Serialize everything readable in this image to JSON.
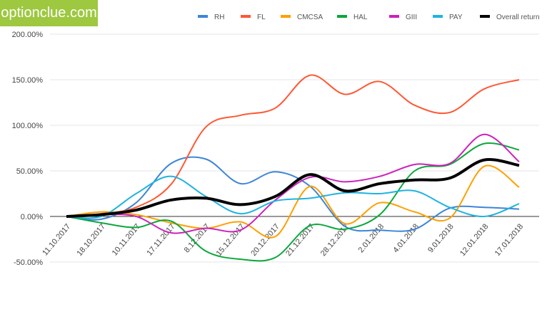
{
  "logo": "optionclue.com",
  "chart_data": {
    "type": "line",
    "title": "",
    "xlabel": "",
    "ylabel": "",
    "ylim": [
      -50,
      200
    ],
    "yticks": [
      -50,
      0,
      50,
      100,
      150,
      200
    ],
    "ytick_labels": [
      "-50.00%",
      "0.00%",
      "50.00%",
      "100.00%",
      "150.00%",
      "200.00%"
    ],
    "legend_position": "top",
    "categories": [
      "11.10.2017",
      "18.10.2017",
      "10.11.2017",
      "17.11.2017",
      "8.12.2017",
      "15.12.2017",
      "20.12.2017",
      "21.12.2017",
      "28.12.2017",
      "2.01.2018",
      "4.01.2018",
      "9.01.2018",
      "12.01.2018",
      "17.01.2018"
    ],
    "series": [
      {
        "name": "RH",
        "color": "#3d85d8",
        "values": [
          0,
          -3,
          15,
          58,
          63,
          36,
          49,
          33,
          -11,
          -15,
          -14,
          9,
          10,
          8
        ]
      },
      {
        "name": "FL",
        "color": "#ff5733",
        "values": [
          0,
          3,
          10,
          35,
          98,
          111,
          119,
          155,
          134,
          148,
          122,
          114,
          140,
          150
        ]
      },
      {
        "name": "CMCSA",
        "color": "#ff9f00",
        "values": [
          0,
          5,
          2,
          -7,
          -13,
          -6,
          -22,
          33,
          -8,
          15,
          5,
          -2,
          55,
          32
        ]
      },
      {
        "name": "HAL",
        "color": "#0aa83a",
        "values": [
          0,
          -7,
          -12,
          -5,
          -38,
          -47,
          -45,
          -10,
          -14,
          2,
          50,
          57,
          80,
          73
        ]
      },
      {
        "name": "GIII",
        "color": "#cc22bb",
        "values": [
          0,
          2,
          0,
          -18,
          -13,
          -15,
          18,
          43,
          38,
          44,
          57,
          58,
          90,
          60
        ]
      },
      {
        "name": "PAY",
        "color": "#1fb3e0",
        "values": [
          0,
          0,
          25,
          44,
          22,
          3,
          17,
          20,
          26,
          25,
          28,
          10,
          0,
          14
        ]
      },
      {
        "name": "Overall return",
        "color": "#000000",
        "values": [
          0,
          2,
          7,
          18,
          20,
          13,
          22,
          46,
          28,
          36,
          40,
          42,
          62,
          56
        ]
      }
    ]
  }
}
